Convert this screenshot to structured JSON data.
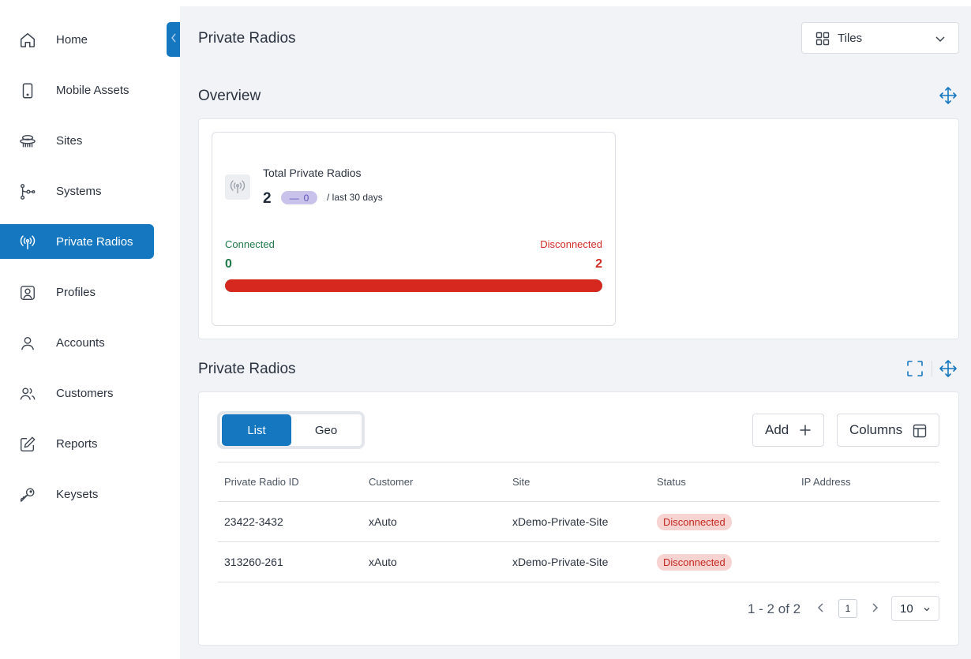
{
  "sidebar": {
    "items": [
      {
        "label": "Home",
        "icon": "home-icon"
      },
      {
        "label": "Mobile Assets",
        "icon": "mobile-icon"
      },
      {
        "label": "Sites",
        "icon": "sites-icon"
      },
      {
        "label": "Systems",
        "icon": "systems-icon"
      },
      {
        "label": "Private Radios",
        "icon": "radio-icon",
        "active": true
      },
      {
        "label": "Profiles",
        "icon": "profile-icon"
      },
      {
        "label": "Accounts",
        "icon": "user-icon"
      },
      {
        "label": "Customers",
        "icon": "users-icon"
      },
      {
        "label": "Reports",
        "icon": "edit-icon"
      },
      {
        "label": "Keysets",
        "icon": "key-icon"
      }
    ]
  },
  "header": {
    "title": "Private Radios",
    "view_select": "Tiles"
  },
  "overview": {
    "title": "Overview",
    "tile": {
      "title": "Total Private Radios",
      "count": "2",
      "delta_sign": "—",
      "delta": "0",
      "period": "/ last 30 days",
      "connected_label": "Connected",
      "disconnected_label": "Disconnected",
      "connected_value": "0",
      "disconnected_value": "2",
      "disconnected_fraction": 1.0
    }
  },
  "radios": {
    "title": "Private Radios",
    "toggle": {
      "list": "List",
      "geo": "Geo"
    },
    "add_label": "Add",
    "columns_label": "Columns",
    "headers": [
      "Private Radio ID",
      "Customer",
      "Site",
      "Status",
      "IP Address"
    ],
    "rows": [
      {
        "id": "23422-3432",
        "customer": "xAuto",
        "site": "xDemo-Private-Site",
        "status": "Disconnected",
        "ip": ""
      },
      {
        "id": "313260-261",
        "customer": "xAuto",
        "site": "xDemo-Private-Site",
        "status": "Disconnected",
        "ip": ""
      }
    ],
    "pager": {
      "range": "1 - 2 of 2",
      "page": "1",
      "page_size": "10"
    }
  },
  "colors": {
    "accent": "#1577bf",
    "connected": "#1f7a4a",
    "disconnected": "#d12c25"
  }
}
